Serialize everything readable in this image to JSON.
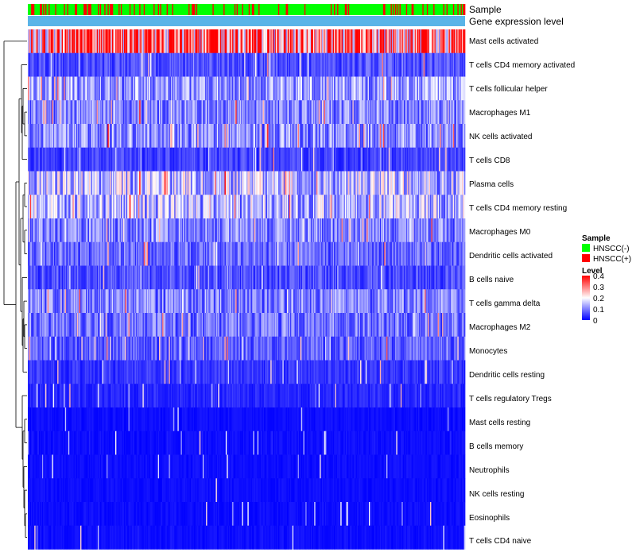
{
  "chart_data": {
    "type": "heatmap",
    "title": "",
    "annotation_rows": [
      "Sample",
      "Gene expression level"
    ],
    "rows": [
      "Mast cells activated",
      "T cells CD4 memory activated",
      "T cells follicular helper",
      "Macrophages M1",
      "NK cells activated",
      "T cells CD8",
      "Plasma cells",
      "T cells CD4 memory resting",
      "Macrophages M0",
      "Dendritic cells activated",
      "B cells naive",
      "T cells gamma delta",
      "Macrophages M2",
      "Monocytes",
      "Dendritic cells resting",
      "T cells regulatory  Tregs",
      "Mast cells resting",
      "B cells memory",
      "Neutrophils",
      "NK cells resting",
      "Eosinophils",
      "T cells CD4 naive"
    ],
    "row_mean_level": [
      0.32,
      0.06,
      0.12,
      0.1,
      0.11,
      0.05,
      0.15,
      0.14,
      0.1,
      0.08,
      0.06,
      0.1,
      0.09,
      0.07,
      0.04,
      0.03,
      0.01,
      0.02,
      0.01,
      0.01,
      0.005,
      0.015
    ],
    "n_samples": 400,
    "sample_group_fraction_positive": 0.18,
    "legend": {
      "sample": {
        "title": "Sample",
        "entries": [
          {
            "label": "HNSCC(-)",
            "color": "#00ff00"
          },
          {
            "label": "HNSCC(+)",
            "color": "#ff0000"
          }
        ]
      },
      "level": {
        "title": "Level",
        "ticks": [
          "0.4",
          "0.3",
          "0.2",
          "0.1",
          "0"
        ],
        "range": [
          0,
          0.4
        ]
      }
    },
    "colors": {
      "low": "#0000ff",
      "mid": "#ffffff",
      "high": "#ff0000",
      "expression_bar": "#5ab4e8",
      "dendrogram": "#000000"
    }
  }
}
